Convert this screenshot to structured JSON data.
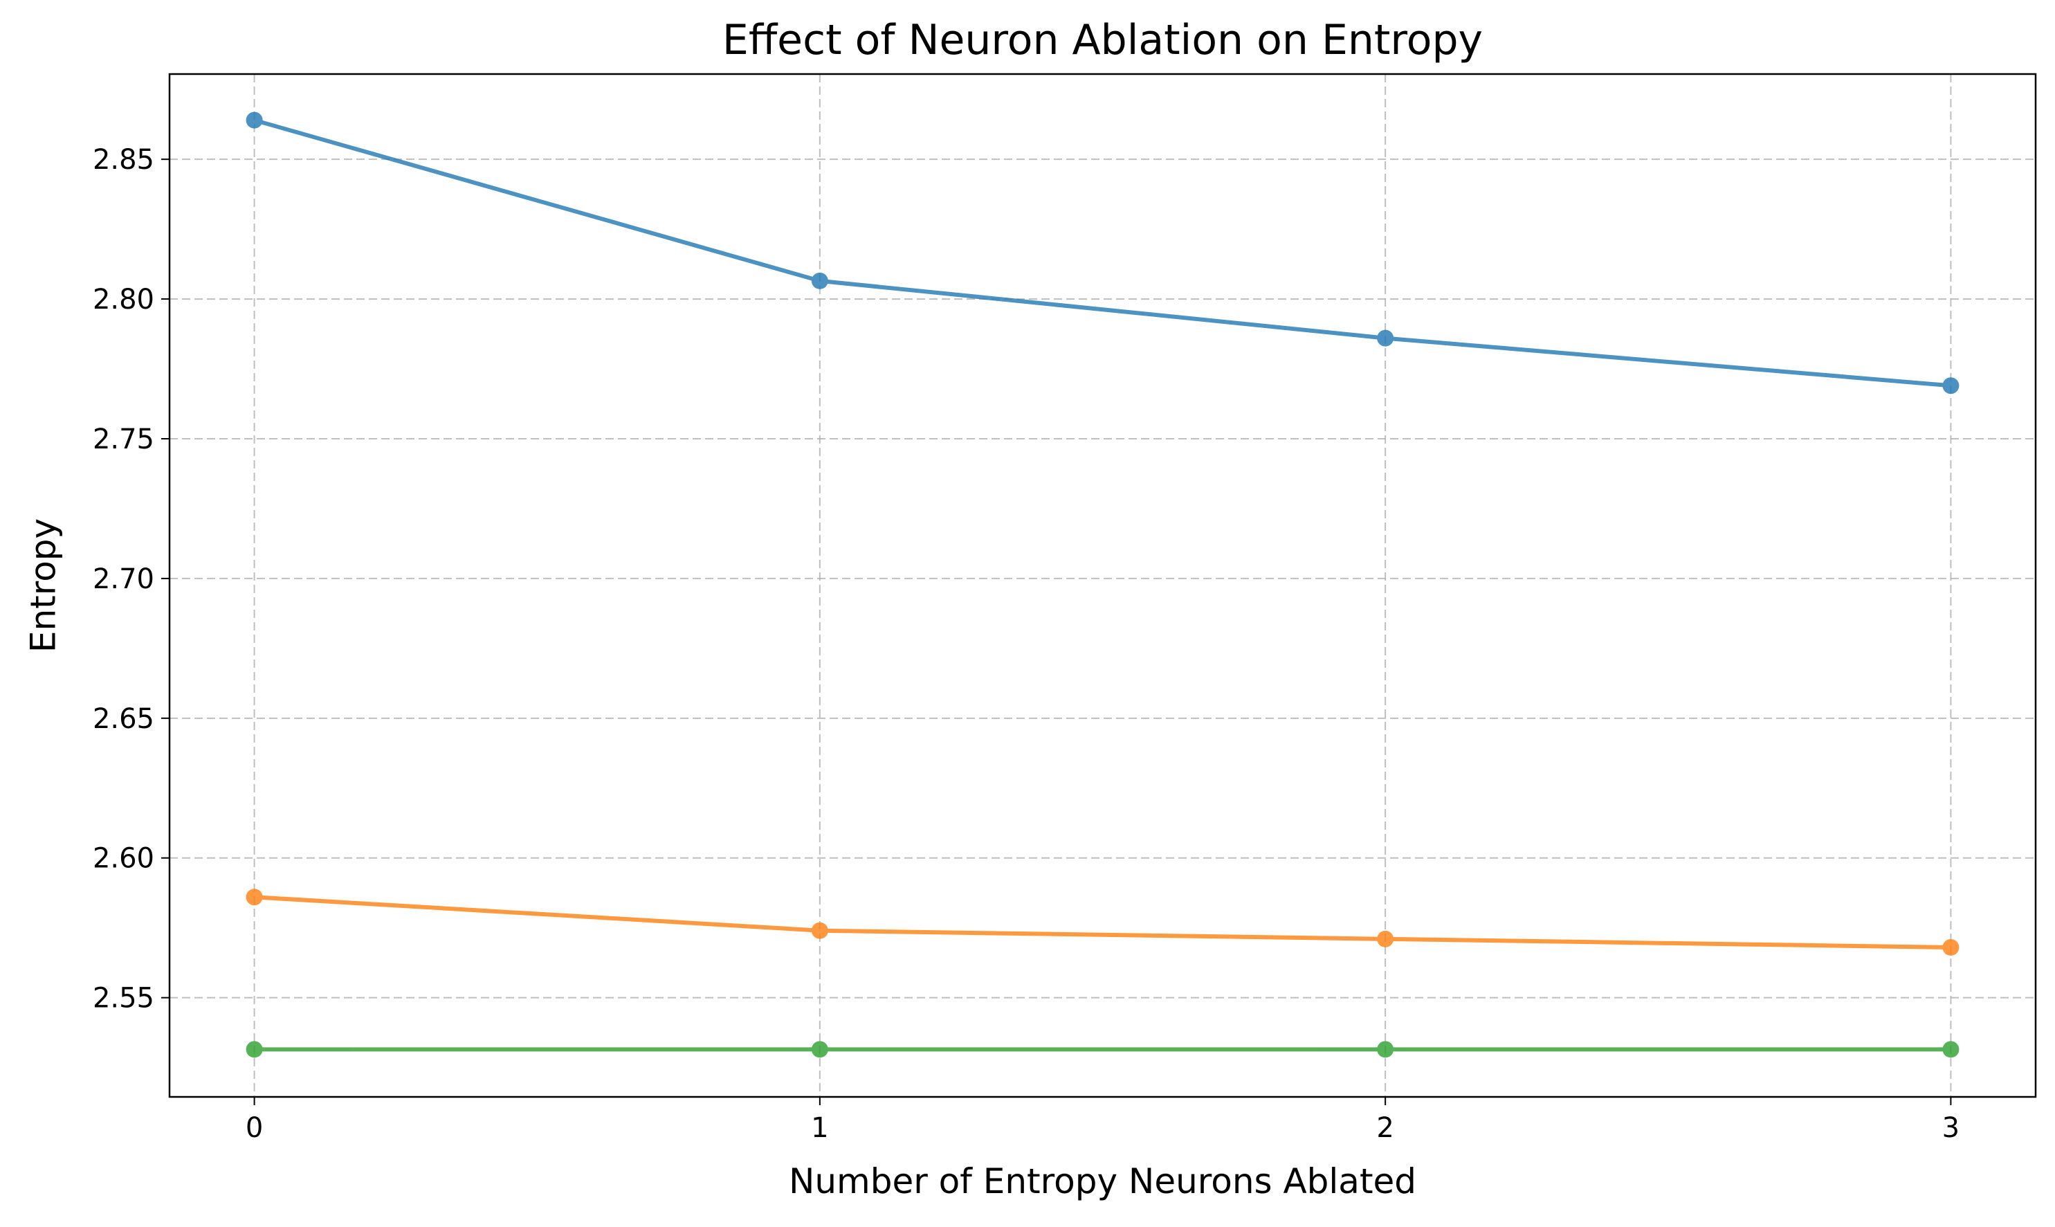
{
  "chart_data": {
    "type": "line",
    "title": "Effect of Neuron Ablation on Entropy",
    "xlabel": "Number of Entropy Neurons Ablated",
    "ylabel": "Entropy",
    "x": [
      0,
      1,
      2,
      3
    ],
    "x_tick_labels": [
      "0",
      "1",
      "2",
      "3"
    ],
    "xlim": [
      -0.15,
      3.15
    ],
    "ylim": [
      2.5145,
      2.8805
    ],
    "y_ticks": [
      2.55,
      2.6,
      2.65,
      2.7,
      2.75,
      2.8,
      2.85
    ],
    "y_tick_labels": [
      "2.55",
      "2.60",
      "2.65",
      "2.70",
      "2.75",
      "2.80",
      "2.85"
    ],
    "grid": true,
    "markers": "circle",
    "series": [
      {
        "values": [
          2.864,
          2.8065,
          2.786,
          2.769
        ],
        "color": "#1f77b4"
      },
      {
        "values": [
          2.586,
          2.574,
          2.571,
          2.568
        ],
        "color": "#ff7f0e"
      },
      {
        "values": [
          2.5315,
          2.5315,
          2.5315,
          2.5315
        ],
        "color": "#2ca02c"
      }
    ]
  }
}
